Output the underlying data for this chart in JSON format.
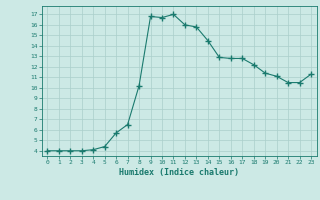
{
  "x": [
    0,
    1,
    2,
    3,
    4,
    5,
    6,
    7,
    8,
    9,
    10,
    11,
    12,
    13,
    14,
    15,
    16,
    17,
    18,
    19,
    20,
    21,
    22,
    23
  ],
  "y": [
    4,
    4,
    4,
    4,
    4.1,
    4.4,
    5.7,
    6.5,
    10.2,
    16.8,
    16.7,
    17.0,
    16.0,
    15.8,
    14.5,
    12.9,
    12.8,
    12.8,
    12.2,
    11.4,
    11.1,
    10.5,
    10.5,
    11.3
  ],
  "xlabel": "Humidex (Indice chaleur)",
  "ylim": [
    3.5,
    17.8
  ],
  "xlim": [
    -0.5,
    23.5
  ],
  "yticks": [
    4,
    5,
    6,
    7,
    8,
    9,
    10,
    11,
    12,
    13,
    14,
    15,
    16,
    17
  ],
  "xticks": [
    0,
    1,
    2,
    3,
    4,
    5,
    6,
    7,
    8,
    9,
    10,
    11,
    12,
    13,
    14,
    15,
    16,
    17,
    18,
    19,
    20,
    21,
    22,
    23
  ],
  "line_color": "#1a7a6e",
  "marker": "+",
  "bg_color": "#cce9e5",
  "grid_color": "#aacfcb",
  "tick_label_color": "#1a7a6e",
  "xlabel_color": "#1a7a6e"
}
